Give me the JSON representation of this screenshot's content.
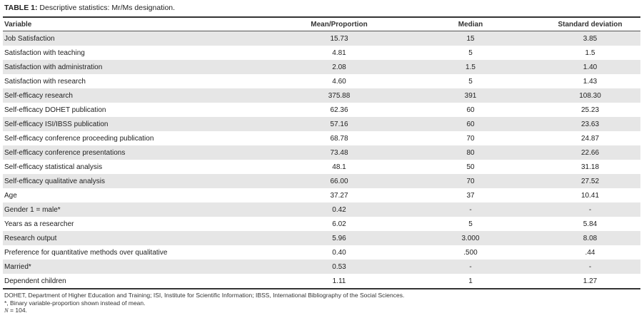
{
  "caption": {
    "label": "TABLE 1:",
    "text": "Descriptive statistics: Mr/Ms designation."
  },
  "headers": [
    "Variable",
    "Mean/Proportion",
    "Median",
    "Standard deviation"
  ],
  "rows": [
    [
      "Job Satisfaction",
      "15.73",
      "15",
      "3.85"
    ],
    [
      "Satisfaction with teaching",
      "4.81",
      "5",
      "1.5"
    ],
    [
      "Satisfaction with administration",
      "2.08",
      "1.5",
      "1.40"
    ],
    [
      "Satisfaction with research",
      "4.60",
      "5",
      "1.43"
    ],
    [
      "Self-efficacy research",
      "375.88",
      "391",
      "108.30"
    ],
    [
      "Self-efficacy DOHET publication",
      "62.36",
      "60",
      "25.23"
    ],
    [
      "Self-efficacy ISI/IBSS publication",
      "57.16",
      "60",
      "23.63"
    ],
    [
      "Self-efficacy conference proceeding publication",
      "68.78",
      "70",
      "24.87"
    ],
    [
      "Self-efficacy conference presentations",
      "73.48",
      "80",
      "22.66"
    ],
    [
      "Self-efficacy statistical analysis",
      "48.1",
      "50",
      "31.18"
    ],
    [
      "Self-efficacy qualitative analysis",
      "66.00",
      "70",
      "27.52"
    ],
    [
      "Age",
      "37.27",
      "37",
      "10.41"
    ],
    [
      "Gender 1 = male*",
      "0.42",
      "-",
      "-"
    ],
    [
      "Years as a researcher",
      "6.02",
      "5",
      "5.84"
    ],
    [
      " Research output",
      "5.96",
      "3.000",
      "8.08"
    ],
    [
      "Preference for quantitative methods over qualitative",
      "0.40",
      ".500",
      ".44"
    ],
    [
      "Married*",
      "0.53",
      "-",
      "-"
    ],
    [
      "Dependent children",
      "1.11",
      "1",
      "1.27"
    ]
  ],
  "notes": {
    "abbrev": "DOHET, Department of Higher Education and Training; ISI, Institute for Scientific Information; IBSS, International Bibliography of the Social Sciences.",
    "binary": "*, Binary variable-proportion shown instead of mean.",
    "n_symbol": "N",
    "n_value": " = 104."
  }
}
